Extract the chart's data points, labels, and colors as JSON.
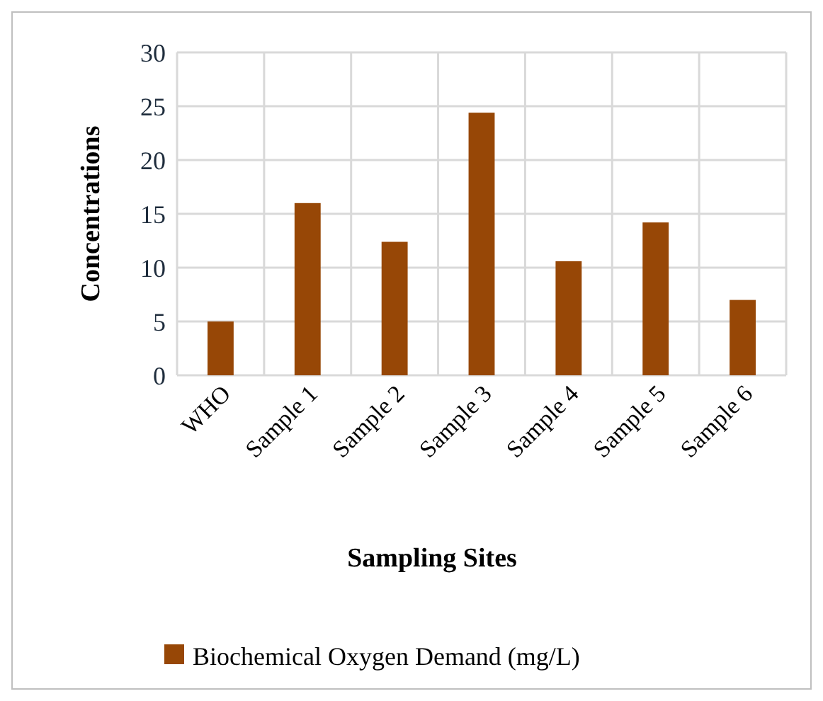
{
  "chart_data": {
    "type": "bar",
    "xlabel": "Sampling Sites",
    "ylabel": "Concentrations",
    "categories": [
      "WHO",
      "Sample 1",
      "Sample 2",
      "Sample 3",
      "Sample 4",
      "Sample 5",
      "Sample 6"
    ],
    "series": [
      {
        "name": "Biochemical Oxygen Demand (mg/L)",
        "color": "#974706",
        "values": [
          5,
          16,
          12.4,
          24.4,
          10.6,
          14.2,
          7
        ]
      }
    ],
    "ylim": [
      0,
      30
    ],
    "yticks": [
      0,
      5,
      10,
      15,
      20,
      25,
      30
    ],
    "grid": true,
    "legend": "bottom"
  }
}
